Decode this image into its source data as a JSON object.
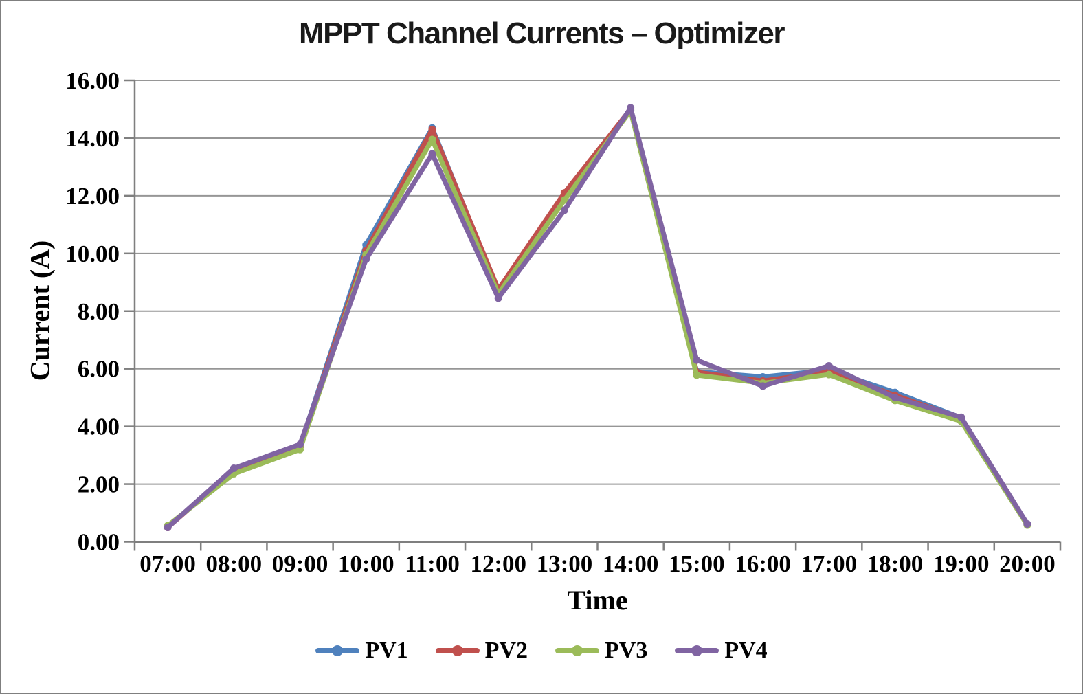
{
  "frame": {
    "border_color": "#7F7F7F",
    "background": "#FFFFFF"
  },
  "chart_data": {
    "type": "line",
    "title": "MPPT Channel Currents – Optimizer",
    "xlabel": "Time",
    "ylabel": "Current (A)",
    "x_labels": [
      "07:00",
      "08:00",
      "09:00",
      "10:00",
      "11:00",
      "12:00",
      "13:00",
      "14:00",
      "15:00",
      "16:00",
      "17:00",
      "18:00",
      "19:00",
      "20:00"
    ],
    "ylim": [
      0,
      16
    ],
    "ytick_step": 2,
    "ytick_labels": [
      "0.00",
      "2.00",
      "4.00",
      "6.00",
      "8.00",
      "10.00",
      "12.00",
      "14.00",
      "16.00"
    ],
    "grid": "horizontal-only",
    "legend_position": "bottom",
    "gridline_color": "#969696",
    "axis_color": "#7F7F7F",
    "text_color": "#000000",
    "series": [
      {
        "name": "PV1",
        "color": "#4F81BD",
        "values": [
          0.52,
          2.45,
          3.3,
          10.3,
          14.35,
          8.7,
          11.95,
          14.95,
          5.9,
          5.72,
          5.95,
          5.18,
          4.3,
          0.6
        ]
      },
      {
        "name": "PV2",
        "color": "#C0504D",
        "values": [
          0.5,
          2.5,
          3.3,
          10.1,
          14.3,
          8.75,
          12.1,
          15.0,
          5.88,
          5.58,
          5.9,
          5.08,
          4.28,
          0.6
        ]
      },
      {
        "name": "PV3",
        "color": "#9BBB59",
        "values": [
          0.56,
          2.36,
          3.2,
          9.96,
          13.95,
          8.6,
          11.85,
          14.95,
          5.78,
          5.5,
          5.8,
          4.9,
          4.18,
          0.58
        ]
      },
      {
        "name": "PV4",
        "color": "#8064A2",
        "values": [
          0.5,
          2.55,
          3.38,
          9.8,
          13.45,
          8.45,
          11.5,
          15.05,
          6.3,
          5.4,
          6.1,
          5.0,
          4.32,
          0.62
        ]
      }
    ]
  }
}
